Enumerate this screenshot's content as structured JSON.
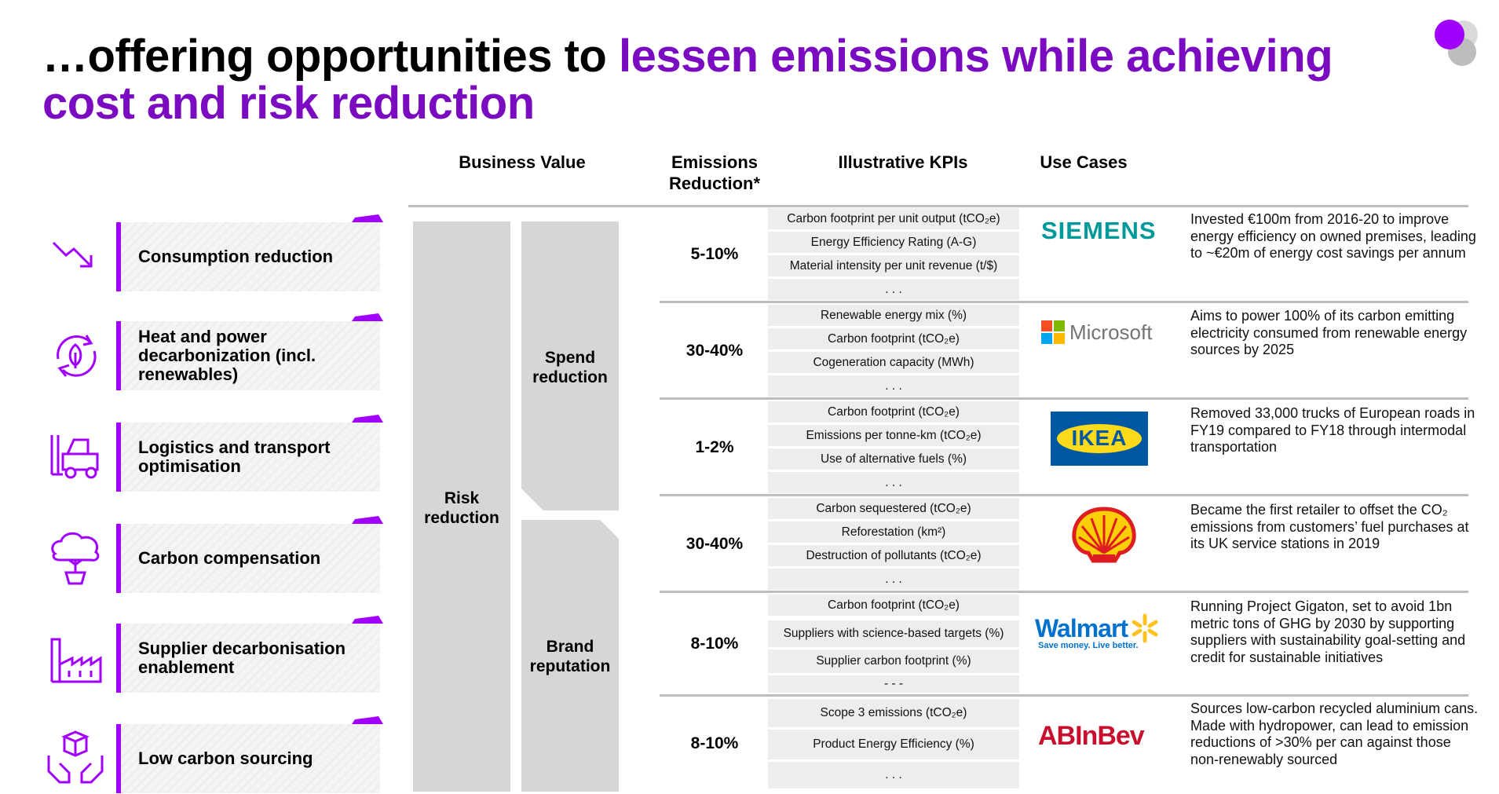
{
  "title": {
    "part1": "…offering opportunities to ",
    "part2": "lessen emissions while achieving",
    "part3": "cost and risk reduction"
  },
  "columns": {
    "business_value": "Business Value",
    "emissions_line1": "Emissions",
    "emissions_line2": "Reduction*",
    "kpis": "Illustrative KPIs",
    "use_cases": "Use Cases"
  },
  "levers": [
    {
      "label": "Consumption reduction",
      "icon": "trend-down-icon"
    },
    {
      "label": "Heat and power decarbonization (incl. renewables)",
      "icon": "renewable-cycle-icon"
    },
    {
      "label": "Logistics and transport optimisation",
      "icon": "forklift-icon"
    },
    {
      "label": "Carbon compensation",
      "icon": "tree-pot-icon"
    },
    {
      "label": "Supplier decarbonisation enablement",
      "icon": "factory-icon"
    },
    {
      "label": "Low carbon sourcing",
      "icon": "hands-box-icon"
    }
  ],
  "business_value": {
    "risk_line1": "Risk",
    "risk_line2": "reduction",
    "spend_line1": "Spend",
    "spend_line2": "reduction",
    "brand_line1": "Brand",
    "brand_line2": "reputation"
  },
  "rows": [
    {
      "pct": "5-10%",
      "kpis": [
        "Carbon footprint per unit output (tCO₂e)",
        "Energy Efficiency Rating (A-G)",
        "Material intensity per unit revenue (t/$)",
        ". . ."
      ],
      "brand": "SIEMENS",
      "desc": "Invested €100m from 2016-20 to improve energy efficiency on owned premises, leading to ~€20m of energy cost savings per annum"
    },
    {
      "pct": "30-40%",
      "kpis": [
        "Renewable energy mix (%)",
        "Carbon footprint  (tCO₂e)",
        "Cogeneration capacity (MWh)",
        ". . ."
      ],
      "brand": "Microsoft",
      "desc": "Aims to power 100% of its carbon emitting electricity consumed from renewable energy sources by 2025"
    },
    {
      "pct": "1-2%",
      "kpis": [
        "Carbon footprint (tCO₂e)",
        "Emissions per tonne-km (tCO₂e)",
        "Use of alternative fuels (%)",
        ". . ."
      ],
      "brand": "IKEA",
      "desc": "Removed 33,000 trucks of European roads in FY19 compared to FY18 through intermodal transportation"
    },
    {
      "pct": "30-40%",
      "kpis": [
        "Carbon sequestered (tCO₂e)",
        "Reforestation (km²)",
        "Destruction of pollutants (tCO₂e)",
        ". . ."
      ],
      "brand": "Shell",
      "desc": "Became the first retailer to offset the CO₂ emissions from customers’ fuel purchases at its UK service stations in 2019"
    },
    {
      "pct": "8-10%",
      "kpis": [
        "Carbon footprint (tCO₂e)",
        "Suppliers with science-based targets (%)",
        "Supplier carbon footprint  (%)",
        "- - -"
      ],
      "brand": "Walmart",
      "brand_tagline": "Save money. Live better.",
      "desc": "Running Project Gigaton, set to avoid 1bn metric tons of GHG by 2030 by supporting suppliers with sustainability goal-setting and credit for sustainable initiatives"
    },
    {
      "pct": "8-10%",
      "kpis": [
        "Scope 3 emissions (tCO₂e)",
        "Product Energy Efficiency (%)",
        ". . ."
      ],
      "brand": "ABInBev",
      "desc": "Sources low-carbon recycled aluminium cans. Made with hydropower, can lead to emission reductions of >30% per can against those non-renewably sourced"
    }
  ],
  "colors": {
    "accent": "#a100ff",
    "title_highlight": "#7a0bc0",
    "gray_block": "#d6d6d6",
    "kpi_cell": "#ededed",
    "siemens": "#009999",
    "ikea_blue": "#0058a3",
    "ikea_yellow": "#ffda1a",
    "walmart_blue": "#0071ce",
    "walmart_yellow": "#ffc220",
    "abinbev_red": "#c8102e"
  }
}
